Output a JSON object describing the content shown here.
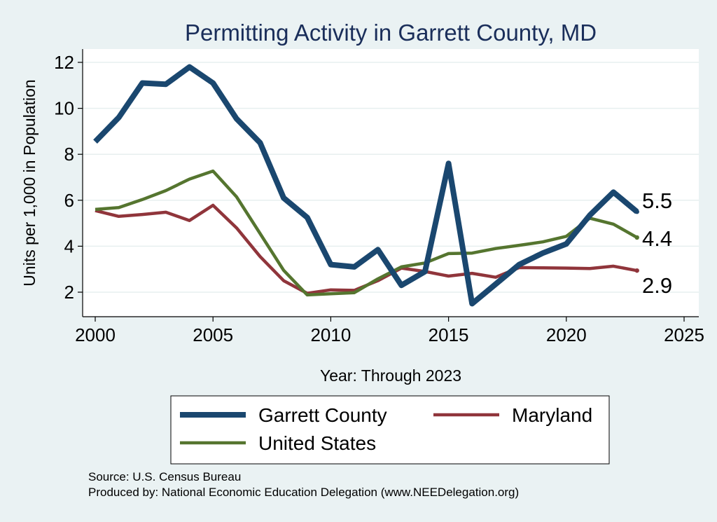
{
  "chart_data": {
    "type": "line",
    "title": "Permitting Activity in Garrett County, MD",
    "xlabel": "Year: Through 2023",
    "ylabel": "Units per 1,000 in Population",
    "xlim": [
      2000,
      2025
    ],
    "ylim": [
      1,
      12.4
    ],
    "xticks": [
      2000,
      2005,
      2010,
      2015,
      2020,
      2025
    ],
    "yticks": [
      2,
      4,
      6,
      8,
      10,
      12
    ],
    "grid": true,
    "legend_position": "bottom",
    "x": [
      2000,
      2001,
      2002,
      2003,
      2004,
      2005,
      2006,
      2007,
      2008,
      2009,
      2010,
      2011,
      2012,
      2013,
      2014,
      2015,
      2016,
      2017,
      2018,
      2019,
      2020,
      2021,
      2022,
      2023
    ],
    "series": [
      {
        "name": "Garrett County",
        "color": "#1a476f",
        "values": [
          8.55,
          9.6,
          11.1,
          11.05,
          11.8,
          11.1,
          9.55,
          8.5,
          6.1,
          5.25,
          3.2,
          3.1,
          3.85,
          2.3,
          2.9,
          7.6,
          1.5,
          2.35,
          3.2,
          3.7,
          4.1,
          5.35,
          6.35,
          5.5
        ],
        "end_label": "5.5"
      },
      {
        "name": "Maryland",
        "color": "#90353b",
        "values": [
          5.55,
          5.3,
          5.38,
          5.48,
          5.12,
          5.78,
          4.8,
          3.55,
          2.5,
          1.95,
          2.1,
          2.08,
          2.5,
          3.05,
          2.9,
          2.7,
          2.82,
          2.65,
          3.07,
          3.06,
          3.05,
          3.03,
          3.13,
          2.94
        ],
        "end_label": "2.9"
      },
      {
        "name": "United States",
        "color": "#55752f",
        "values": [
          5.6,
          5.68,
          6.03,
          6.42,
          6.92,
          7.27,
          6.15,
          4.55,
          2.95,
          1.88,
          1.93,
          1.98,
          2.58,
          3.1,
          3.27,
          3.68,
          3.7,
          3.9,
          4.04,
          4.19,
          4.43,
          5.22,
          4.96,
          4.38
        ],
        "end_label": "4.4"
      }
    ],
    "notes": [
      "Source: U.S. Census Bureau",
      "Produced by: National Economic Education Delegation (www.NEEDelegation.org)"
    ]
  }
}
